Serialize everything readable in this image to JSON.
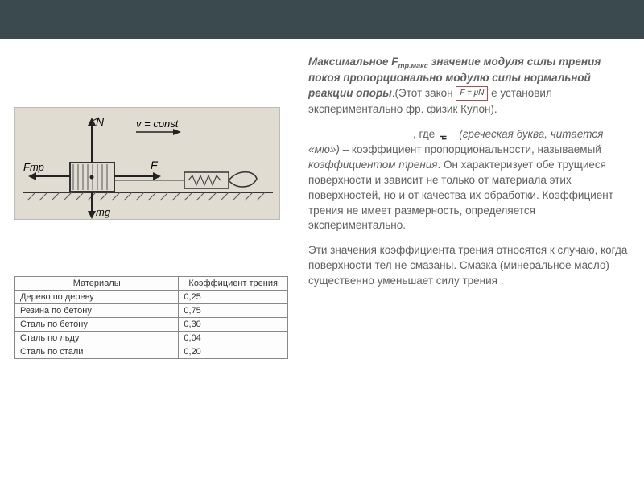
{
  "colors": {
    "topbar_bg": "#3a4a4f",
    "page_bg": "#ffffff",
    "diagram_bg": "#e0dcd2",
    "text": "#606060",
    "table_border": "#888888",
    "formula_border": "#b54a4a"
  },
  "text": {
    "p1_prefix": "Максимальное F",
    "p1_sub": "тр.макс",
    "p1_mid": " значение модуля силы трения покоя пропорционально модулю силы нормальной реакции опоры",
    "p1_after": ".(Этот закон ",
    "formula": "F = μN",
    "p1_tail": " е установил экспериментально фр. физик Кулон).",
    "p2_lead": ", где",
    "p2_mu_note": " (греческая буква, читается «мю»)",
    "p2_body": " – коэффициент пропорциональности, называемый ",
    "p2_coef": "коэффициентом трения",
    "p2_tail": ". Он характеризует обе трущиеся поверхности и зависит не только от материала этих поверхностей, но и от качества их обработки. Коэффициент трения не имеет размерность, определяется экспериментально.",
    "p3": "Эти значения коэффициента трения относятся к случаю, когда поверхности тел не смазаны. Смазка (минеральное масло) существенно уменьшает силу трения .",
    "mu_label": "μ"
  },
  "diagram": {
    "labels": {
      "N": "N",
      "v": "v = const",
      "F": "F",
      "Ftr": "Fтр",
      "mg": "mg"
    },
    "vec_color": "#1a1a1a",
    "hatched_color": "#555555"
  },
  "table": {
    "headers": [
      "Материалы",
      "Коэффициент трения"
    ],
    "rows": [
      [
        "Дерево по дереву",
        "0,25"
      ],
      [
        "Резина по бетону",
        "0,75"
      ],
      [
        "Сталь по бетону",
        "0,30"
      ],
      [
        "Сталь по льду",
        "0,04"
      ],
      [
        "Сталь по стали",
        "0,20"
      ]
    ],
    "col_widths": [
      "60%",
      "40%"
    ]
  }
}
